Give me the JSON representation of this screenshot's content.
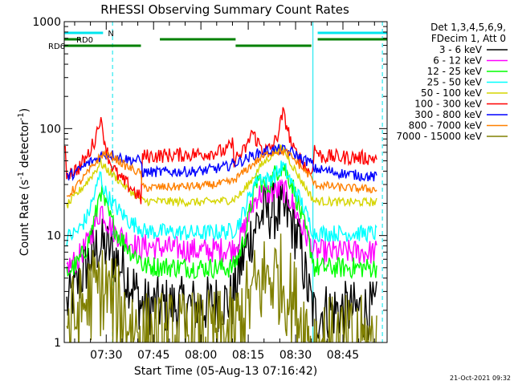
{
  "chart_data": {
    "type": "line",
    "title": "RHESSI Observing Summary Count Rates",
    "xlabel": "Start Time (05-Aug-13 07:16:42)",
    "ylabel": "Count Rate (s⁻¹ detector⁻¹)",
    "ylabel_main": "Count Rate (s",
    "ylabel_sup1": "-1",
    "ylabel_mid": " detector",
    "ylabel_sup2": "-1",
    "ylabel_end": ")",
    "yscale": "log",
    "ylim": [
      1,
      1000
    ],
    "xlim": [
      "07:16:42",
      "08:59:00"
    ],
    "y_ticks": [
      "1",
      "10",
      "100",
      "1000"
    ],
    "x_ticks": [
      "07:30",
      "07:45",
      "08:00",
      "08:15",
      "08:30",
      "08:45"
    ],
    "legend_header": [
      "Det 1,3,4,5,6,9,",
      "FDecim 1, Att 0"
    ],
    "timestamp": "21-Oct-2021 09:32",
    "flags": [
      {
        "label": "N",
        "color": "#00e5ee",
        "segments": [
          [
            "07:16:42",
            "07:29:00"
          ],
          [
            "08:37:00",
            "08:59:00"
          ]
        ]
      },
      {
        "label": "RD0",
        "color": "#008000",
        "segments": [
          [
            "07:16:42",
            "07:22:00"
          ],
          [
            "07:47:00",
            "08:11:00"
          ],
          [
            "08:37:00",
            "08:59:00"
          ]
        ]
      },
      {
        "label": "RD6",
        "color": "#008000",
        "segments": [
          [
            "07:16:42",
            "07:41:00"
          ],
          [
            "08:11:00",
            "08:35:00"
          ]
        ]
      }
    ],
    "vlines": [
      {
        "time": "07:16:42",
        "color": "#00e5ee",
        "style": "solid"
      },
      {
        "time": "07:32:00",
        "color": "#00e5ee",
        "style": "dashed"
      },
      {
        "time": "08:35:30",
        "color": "#00e5ee",
        "style": "solid"
      },
      {
        "time": "08:57:30",
        "color": "#00e5ee",
        "style": "dashed"
      }
    ],
    "series": [
      {
        "name": "3 - 6 keV",
        "color": "#000000",
        "noise": 0.28,
        "points": [
          [
            "07:16:42",
            null
          ],
          [
            "07:17:30",
            2.2
          ],
          [
            "07:21:00",
            3.5
          ],
          [
            "07:24:00",
            5.5
          ],
          [
            "07:27:30",
            8.0
          ],
          [
            "07:31:00",
            7.5
          ],
          [
            "07:35:00",
            5.0
          ],
          [
            "07:39:00",
            3.2
          ],
          [
            "07:41:00",
            2.2
          ],
          [
            "07:41:30",
            2.2
          ],
          [
            "07:50:00",
            2.2
          ],
          [
            "08:00:00",
            2.2
          ],
          [
            "08:10:00",
            2.5
          ],
          [
            "08:12:00",
            4.5
          ],
          [
            "08:14:00",
            7.0
          ],
          [
            "08:17:00",
            12.0
          ],
          [
            "08:20:00",
            16.5
          ],
          [
            "08:24:00",
            17.0
          ],
          [
            "08:28:00",
            15.0
          ],
          [
            "08:31:00",
            9.0
          ],
          [
            "08:34:00",
            3.0
          ],
          [
            "08:36:00",
            1.8
          ],
          [
            "08:40:00",
            2.0
          ],
          [
            "08:50:00",
            2.0
          ],
          [
            "08:56:00",
            2.0
          ],
          [
            "08:57:30",
            null
          ]
        ]
      },
      {
        "name": "6 - 12 keV",
        "color": "#ff00ff",
        "noise": 0.12,
        "points": [
          [
            "07:16:42",
            null
          ],
          [
            "07:17:30",
            5.0
          ],
          [
            "07:21:00",
            6.0
          ],
          [
            "07:24:00",
            8.5
          ],
          [
            "07:27:00",
            14.0
          ],
          [
            "07:28:30",
            18.0
          ],
          [
            "07:30:00",
            14.0
          ],
          [
            "07:33:00",
            10.5
          ],
          [
            "07:37:00",
            9.0
          ],
          [
            "07:41:00",
            7.5
          ],
          [
            "07:41:30",
            8.0
          ],
          [
            "08:00:00",
            7.2
          ],
          [
            "08:10:00",
            7.5
          ],
          [
            "08:12:00",
            9.0
          ],
          [
            "08:14:00",
            12.0
          ],
          [
            "08:16:00",
            18.0
          ],
          [
            "08:18:00",
            24.0
          ],
          [
            "08:22:00",
            25.0
          ],
          [
            "08:26:00",
            27.0
          ],
          [
            "08:29:00",
            20.0
          ],
          [
            "08:32:00",
            12.0
          ],
          [
            "08:35:00",
            8.0
          ],
          [
            "08:36:00",
            7.0
          ],
          [
            "08:45:00",
            7.0
          ],
          [
            "08:56:00",
            7.0
          ],
          [
            "08:57:30",
            null
          ]
        ]
      },
      {
        "name": "12 - 25 keV",
        "color": "#00ff00",
        "noise": 0.1,
        "points": [
          [
            "07:16:42",
            null
          ],
          [
            "07:17:30",
            4.5
          ],
          [
            "07:21:00",
            5.5
          ],
          [
            "07:24:00",
            8.0
          ],
          [
            "07:27:00",
            17.0
          ],
          [
            "07:28:00",
            28.0
          ],
          [
            "07:29:00",
            22.0
          ],
          [
            "07:31:00",
            15.0
          ],
          [
            "07:34:00",
            10.0
          ],
          [
            "07:38:00",
            7.0
          ],
          [
            "07:41:00",
            6.0
          ],
          [
            "07:41:30",
            5.2
          ],
          [
            "08:00:00",
            5.0
          ],
          [
            "08:10:00",
            5.0
          ],
          [
            "08:12:00",
            6.5
          ],
          [
            "08:14:00",
            10.0
          ],
          [
            "08:16:00",
            20.0
          ],
          [
            "08:18:00",
            34.0
          ],
          [
            "08:21:00",
            28.0
          ],
          [
            "08:24:00",
            40.0
          ],
          [
            "08:26:00",
            45.0
          ],
          [
            "08:29:00",
            30.0
          ],
          [
            "08:32:00",
            15.0
          ],
          [
            "08:35:00",
            7.0
          ],
          [
            "08:36:00",
            5.0
          ],
          [
            "08:45:00",
            5.0
          ],
          [
            "08:56:00",
            5.0
          ],
          [
            "08:57:30",
            null
          ]
        ]
      },
      {
        "name": "25 - 50 keV",
        "color": "#00ffff",
        "noise": 0.08,
        "points": [
          [
            "07:16:42",
            null
          ],
          [
            "07:17:30",
            9.5
          ],
          [
            "07:21:00",
            11.0
          ],
          [
            "07:24:00",
            15.0
          ],
          [
            "07:27:00",
            28.0
          ],
          [
            "07:28:00",
            38.0
          ],
          [
            "07:29:30",
            26.0
          ],
          [
            "07:32:00",
            20.0
          ],
          [
            "07:35:00",
            16.0
          ],
          [
            "07:38:00",
            13.0
          ],
          [
            "07:41:00",
            12.0
          ],
          [
            "07:41:30",
            11.0
          ],
          [
            "08:00:00",
            10.5
          ],
          [
            "08:10:00",
            11.0
          ],
          [
            "08:12:00",
            13.0
          ],
          [
            "08:14:00",
            18.0
          ],
          [
            "08:16:00",
            26.0
          ],
          [
            "08:18:00",
            36.0
          ],
          [
            "08:21:00",
            33.0
          ],
          [
            "08:24:00",
            38.0
          ],
          [
            "08:26:00",
            45.0
          ],
          [
            "08:29:00",
            30.0
          ],
          [
            "08:32:00",
            20.0
          ],
          [
            "08:35:00",
            12.0
          ],
          [
            "08:36:00",
            10.5
          ],
          [
            "08:45:00",
            10.5
          ],
          [
            "08:56:00",
            10.5
          ],
          [
            "08:57:30",
            null
          ]
        ]
      },
      {
        "name": "50 - 100 keV",
        "color": "#d5d500",
        "noise": 0.04,
        "points": [
          [
            "07:16:42",
            null
          ],
          [
            "07:17:30",
            19.0
          ],
          [
            "07:21:00",
            25.0
          ],
          [
            "07:24:00",
            32.0
          ],
          [
            "07:27:00",
            42.0
          ],
          [
            "07:28:00",
            48.0
          ],
          [
            "07:30:00",
            42.0
          ],
          [
            "07:33:00",
            35.0
          ],
          [
            "07:37:00",
            27.0
          ],
          [
            "07:41:00",
            22.0
          ],
          [
            "07:41:30",
            21.0
          ],
          [
            "08:00:00",
            20.5
          ],
          [
            "08:10:00",
            21.5
          ],
          [
            "08:13:00",
            25.0
          ],
          [
            "08:16:00",
            33.0
          ],
          [
            "08:19:00",
            45.0
          ],
          [
            "08:22:00",
            55.0
          ],
          [
            "08:24:00",
            63.0
          ],
          [
            "08:26:00",
            65.0
          ],
          [
            "08:29:00",
            45.0
          ],
          [
            "08:32:00",
            32.0
          ],
          [
            "08:35:00",
            23.0
          ],
          [
            "08:36:00",
            21.0
          ],
          [
            "08:45:00",
            20.5
          ],
          [
            "08:56:00",
            20.5
          ],
          [
            "08:57:30",
            null
          ]
        ]
      },
      {
        "name": "100 - 300 keV",
        "color": "#ff0000",
        "noise": 0.07,
        "points": [
          [
            "07:16:42",
            null
          ],
          [
            "07:17:00",
            60.0
          ],
          [
            "07:17:30",
            38.0
          ],
          [
            "07:21:00",
            42.0
          ],
          [
            "07:24:00",
            55.0
          ],
          [
            "07:26:30",
            80.0
          ],
          [
            "07:28:00",
            125.0
          ],
          [
            "07:29:00",
            90.0
          ],
          [
            "07:31:00",
            50.0
          ],
          [
            "07:34:00",
            35.0
          ],
          [
            "07:38:00",
            28.0
          ],
          [
            "07:41:00",
            22.0
          ],
          [
            "07:41:30",
            55.0
          ],
          [
            "08:00:00",
            58.0
          ],
          [
            "08:08:00",
            62.0
          ],
          [
            "08:10:00",
            72.0
          ],
          [
            "08:10:30",
            52.0
          ],
          [
            "08:13:00",
            58.0
          ],
          [
            "08:15:00",
            72.0
          ],
          [
            "08:16:00",
            95.0
          ],
          [
            "08:18:00",
            75.0
          ],
          [
            "08:20:00",
            62.0
          ],
          [
            "08:22:00",
            65.0
          ],
          [
            "08:24:00",
            80.0
          ],
          [
            "08:26:00",
            140.0
          ],
          [
            "08:27:30",
            100.0
          ],
          [
            "08:29:00",
            65.0
          ],
          [
            "08:32:00",
            50.0
          ],
          [
            "08:34:00",
            40.0
          ],
          [
            "08:35:00",
            38.0
          ],
          [
            "08:36:00",
            65.0
          ],
          [
            "08:38:00",
            55.0
          ],
          [
            "08:45:00",
            54.0
          ],
          [
            "08:56:00",
            53.0
          ],
          [
            "08:57:30",
            null
          ]
        ]
      },
      {
        "name": "300 - 800 keV",
        "color": "#0000ff",
        "noise": 0.05,
        "points": [
          [
            "07:16:42",
            null
          ],
          [
            "07:17:30",
            35.0
          ],
          [
            "07:21:00",
            40.0
          ],
          [
            "07:24:00",
            47.0
          ],
          [
            "07:27:00",
            52.0
          ],
          [
            "07:29:00",
            58.0
          ],
          [
            "07:32:00",
            57.0
          ],
          [
            "07:36:00",
            52.0
          ],
          [
            "07:41:00",
            50.0
          ],
          [
            "07:41:30",
            39.0
          ],
          [
            "08:00:00",
            40.0
          ],
          [
            "08:08:00",
            44.0
          ],
          [
            "08:10:00",
            47.0
          ],
          [
            "08:13:00",
            50.0
          ],
          [
            "08:17:00",
            57.0
          ],
          [
            "08:21:00",
            62.0
          ],
          [
            "08:25:00",
            64.0
          ],
          [
            "08:29:00",
            60.0
          ],
          [
            "08:32:00",
            52.0
          ],
          [
            "08:35:00",
            48.0
          ],
          [
            "08:36:00",
            42.0
          ],
          [
            "08:45:00",
            38.0
          ],
          [
            "08:56:00",
            35.0
          ],
          [
            "08:57:30",
            null
          ]
        ]
      },
      {
        "name": "800 - 7000 keV",
        "color": "#ff8000",
        "noise": 0.04,
        "points": [
          [
            "07:16:42",
            null
          ],
          [
            "07:17:30",
            23.0
          ],
          [
            "07:21:00",
            30.0
          ],
          [
            "07:24:00",
            38.0
          ],
          [
            "07:27:00",
            50.0
          ],
          [
            "07:29:00",
            58.0
          ],
          [
            "07:32:00",
            55.0
          ],
          [
            "07:36:00",
            45.0
          ],
          [
            "07:41:00",
            38.0
          ],
          [
            "07:41:30",
            28.0
          ],
          [
            "08:00:00",
            29.0
          ],
          [
            "08:08:00",
            31.0
          ],
          [
            "08:10:00",
            32.0
          ],
          [
            "08:13:00",
            38.0
          ],
          [
            "08:17:00",
            48.0
          ],
          [
            "08:21:00",
            58.0
          ],
          [
            "08:24:00",
            62.0
          ],
          [
            "08:27:00",
            60.0
          ],
          [
            "08:30:00",
            50.0
          ],
          [
            "08:33:00",
            40.0
          ],
          [
            "08:35:00",
            35.0
          ],
          [
            "08:36:00",
            30.0
          ],
          [
            "08:45:00",
            28.0
          ],
          [
            "08:56:00",
            27.0
          ],
          [
            "08:57:30",
            null
          ]
        ]
      },
      {
        "name": "7000 - 15000 keV",
        "color": "#808000",
        "noise": 0.45,
        "points": [
          [
            "07:16:42",
            null
          ],
          [
            "07:17:30",
            1.4
          ],
          [
            "07:21:00",
            1.8
          ],
          [
            "07:24:00",
            2.5
          ],
          [
            "07:27:00",
            3.2
          ],
          [
            "07:30:00",
            3.0
          ],
          [
            "07:33:00",
            2.2
          ],
          [
            "07:37:00",
            1.6
          ],
          [
            "07:41:00",
            1.2
          ],
          [
            "07:41:30",
            1.1
          ],
          [
            "08:00:00",
            1.1
          ],
          [
            "08:10:00",
            1.2
          ],
          [
            "08:13:00",
            1.8
          ],
          [
            "08:17:00",
            3.0
          ],
          [
            "08:21:00",
            4.2
          ],
          [
            "08:25:00",
            4.0
          ],
          [
            "08:29:00",
            2.5
          ],
          [
            "08:32:00",
            1.6
          ],
          [
            "08:35:00",
            1.1
          ],
          [
            "08:36:00",
            1.0
          ],
          [
            "08:45:00",
            1.0
          ],
          [
            "08:56:00",
            1.0
          ],
          [
            "08:57:30",
            null
          ]
        ]
      }
    ]
  }
}
